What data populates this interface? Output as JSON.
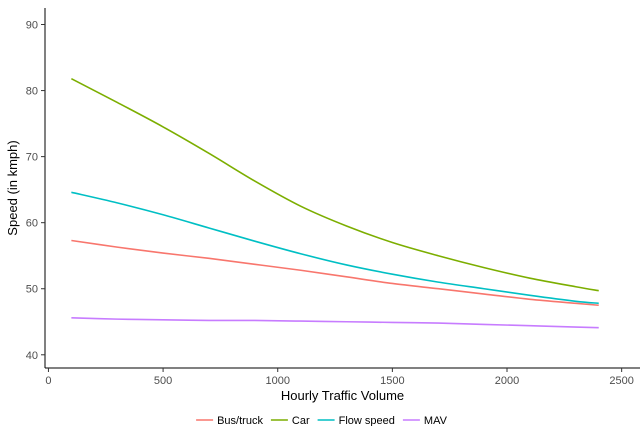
{
  "chart_data": {
    "type": "line",
    "title": "",
    "xlabel": "Hourly Traffic Volume",
    "ylabel": "Speed (in kmph)",
    "xlim": [
      -15,
      2580
    ],
    "ylim": [
      38,
      92.5
    ],
    "xticks": [
      0,
      500,
      1000,
      1500,
      2000,
      2500
    ],
    "yticks": [
      40,
      50,
      60,
      70,
      80,
      90
    ],
    "grid": false,
    "legend_position": "bottom",
    "series": [
      {
        "name": "Bus/truck",
        "color": "#F8766D",
        "x": [
          100,
          300,
          500,
          700,
          900,
          1100,
          1300,
          1500,
          1700,
          1900,
          2100,
          2300,
          2400
        ],
        "y": [
          57.3,
          56.3,
          55.4,
          54.6,
          53.7,
          52.8,
          51.8,
          50.8,
          50.0,
          49.2,
          48.4,
          47.8,
          47.5
        ]
      },
      {
        "name": "Car",
        "color": "#7CAE00",
        "x": [
          100,
          300,
          500,
          700,
          900,
          1100,
          1300,
          1500,
          1700,
          1900,
          2100,
          2300,
          2400
        ],
        "y": [
          81.8,
          78.2,
          74.5,
          70.5,
          66.3,
          62.5,
          59.5,
          57.0,
          55.0,
          53.2,
          51.6,
          50.3,
          49.7
        ]
      },
      {
        "name": "Flow speed",
        "color": "#00BFC4",
        "x": [
          100,
          300,
          500,
          700,
          900,
          1100,
          1300,
          1500,
          1700,
          1900,
          2100,
          2300,
          2400
        ],
        "y": [
          64.6,
          63.0,
          61.2,
          59.2,
          57.2,
          55.3,
          53.6,
          52.2,
          51.0,
          50.0,
          49.0,
          48.1,
          47.8
        ]
      },
      {
        "name": "MAV",
        "color": "#C77CFF",
        "x": [
          100,
          300,
          500,
          700,
          900,
          1100,
          1300,
          1500,
          1700,
          1900,
          2100,
          2300,
          2400
        ],
        "y": [
          45.6,
          45.4,
          45.3,
          45.2,
          45.2,
          45.1,
          45.0,
          44.9,
          44.8,
          44.6,
          44.4,
          44.2,
          44.1
        ]
      }
    ]
  }
}
